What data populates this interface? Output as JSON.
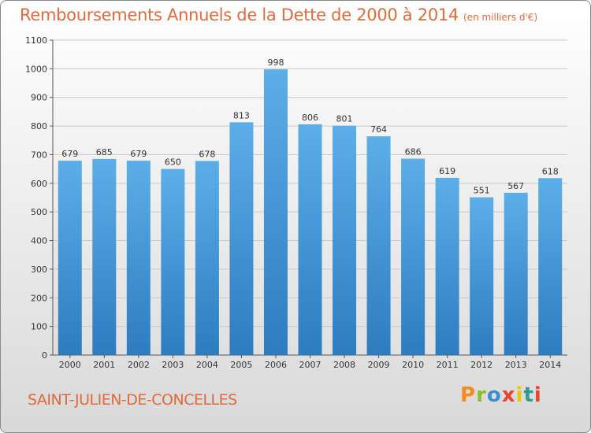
{
  "header": {
    "title": "Remboursements Annuels de la Dette de 2000 à 2014",
    "unit": "(en milliers d'€)"
  },
  "footer": {
    "city": "SAINT-JULIEN-DE-CONCELLES",
    "logo": "Proxiti"
  },
  "colors": {
    "title": "#e06a3b",
    "bar_top": "#5caee8",
    "bar_bottom": "#2d7cc0",
    "logo_letters": [
      "#f28c1e",
      "#8bbf2a",
      "#3a8fd1",
      "#e8432e",
      "#f2c500",
      "#2a9d8f",
      "#e8432e"
    ]
  },
  "chart_data": {
    "type": "bar",
    "title": "Remboursements Annuels de la Dette de 2000 à 2014",
    "xlabel": "",
    "ylabel": "",
    "ylim": [
      0,
      1100
    ],
    "yticks": [
      0,
      100,
      200,
      300,
      400,
      500,
      600,
      700,
      800,
      900,
      1000,
      1100
    ],
    "grid": true,
    "categories": [
      "2000",
      "2001",
      "2002",
      "2003",
      "2004",
      "2005",
      "2006",
      "2007",
      "2008",
      "2009",
      "2010",
      "2011",
      "2012",
      "2013",
      "2014"
    ],
    "values": [
      679,
      685,
      679,
      650,
      678,
      813,
      998,
      806,
      801,
      764,
      686,
      619,
      551,
      567,
      618
    ]
  }
}
